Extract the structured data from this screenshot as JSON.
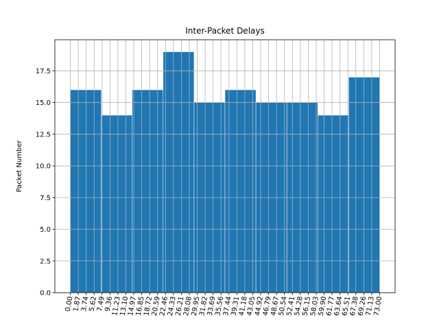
{
  "chart_data": {
    "type": "histogram",
    "title": "Inter-Packet Delays",
    "y_label": "Packet Number",
    "bins": [
      0,
      7.3,
      14.6,
      21.9,
      29.2,
      36.5,
      43.8,
      51.1,
      58.4,
      65.7,
      73
    ],
    "values": [
      16,
      14,
      16,
      19,
      15,
      16,
      15,
      15,
      14,
      17
    ],
    "color": "#1f77b4",
    "grid": true,
    "xlim": [
      -3.65,
      76.65
    ],
    "ylim": [
      0,
      19.95
    ],
    "yticks": [
      {
        "value": 0,
        "label": "0.0"
      },
      {
        "value": 2.5,
        "label": "2.5"
      },
      {
        "value": 5,
        "label": "5.0"
      },
      {
        "value": 7.5,
        "label": "7.5"
      },
      {
        "value": 10,
        "label": "10.0"
      },
      {
        "value": 12.5,
        "label": "12.5"
      },
      {
        "value": 15,
        "label": "15.0"
      },
      {
        "value": 17.5,
        "label": "17.5"
      }
    ],
    "xticks": [
      {
        "value": 0,
        "label": "0.00"
      },
      {
        "value": 1.87,
        "label": "1.87"
      },
      {
        "value": 3.74,
        "label": "3.74"
      },
      {
        "value": 5.62,
        "label": "5.62"
      },
      {
        "value": 7.49,
        "label": "7.49"
      },
      {
        "value": 9.36,
        "label": "9.36"
      },
      {
        "value": 11.23,
        "label": "11.23"
      },
      {
        "value": 13.1,
        "label": "13.10"
      },
      {
        "value": 14.97,
        "label": "14.97"
      },
      {
        "value": 16.85,
        "label": "16.85"
      },
      {
        "value": 18.72,
        "label": "18.72"
      },
      {
        "value": 20.59,
        "label": "20.59"
      },
      {
        "value": 22.46,
        "label": "22.46"
      },
      {
        "value": 24.33,
        "label": "24.33"
      },
      {
        "value": 26.21,
        "label": "26.21"
      },
      {
        "value": 28.08,
        "label": "28.08"
      },
      {
        "value": 29.95,
        "label": "29.95"
      },
      {
        "value": 31.82,
        "label": "31.82"
      },
      {
        "value": 33.69,
        "label": "33.69"
      },
      {
        "value": 35.56,
        "label": "35.56"
      },
      {
        "value": 37.44,
        "label": "37.44"
      },
      {
        "value": 39.31,
        "label": "39.31"
      },
      {
        "value": 41.18,
        "label": "41.18"
      },
      {
        "value": 43.05,
        "label": "43.05"
      },
      {
        "value": 44.92,
        "label": "44.92"
      },
      {
        "value": 46.79,
        "label": "46.79"
      },
      {
        "value": 48.67,
        "label": "48.67"
      },
      {
        "value": 50.54,
        "label": "50.54"
      },
      {
        "value": 52.41,
        "label": "52.41"
      },
      {
        "value": 54.28,
        "label": "54.28"
      },
      {
        "value": 56.15,
        "label": "56.15"
      },
      {
        "value": 58.03,
        "label": "58.03"
      },
      {
        "value": 59.9,
        "label": "59.90"
      },
      {
        "value": 61.77,
        "label": "61.77"
      },
      {
        "value": 63.64,
        "label": "63.64"
      },
      {
        "value": 65.51,
        "label": "65.51"
      },
      {
        "value": 67.38,
        "label": "67.38"
      },
      {
        "value": 69.26,
        "label": "69.26"
      },
      {
        "value": 71.13,
        "label": "71.13"
      },
      {
        "value": 73,
        "label": "73.00"
      }
    ]
  }
}
